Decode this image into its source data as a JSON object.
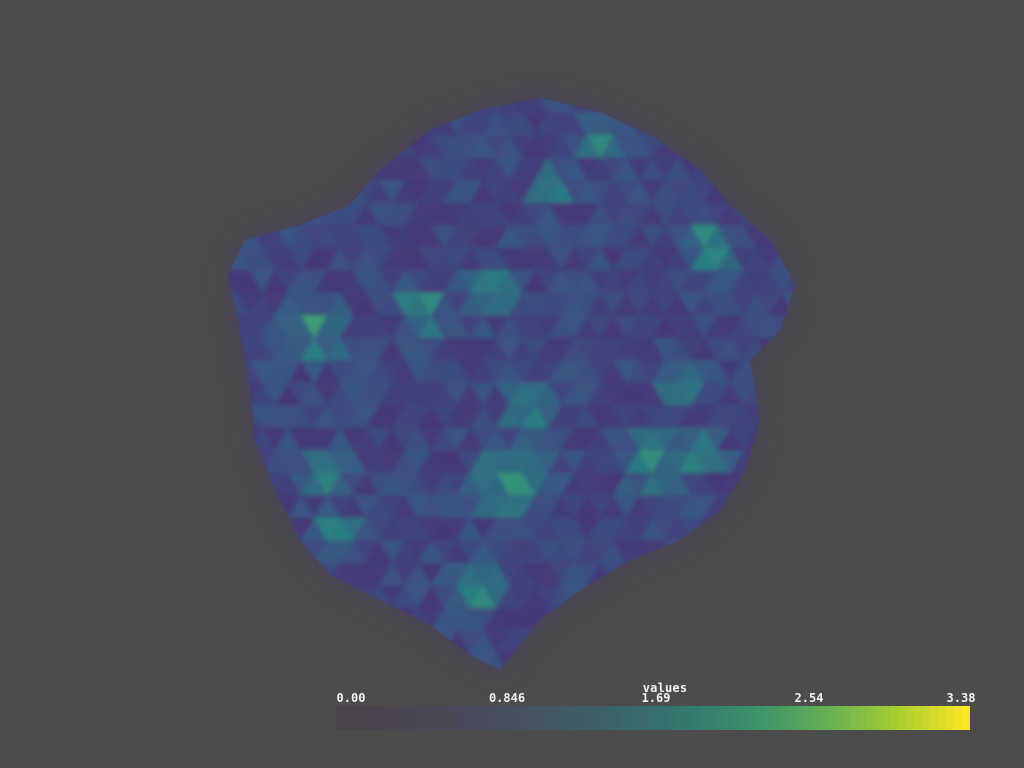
{
  "background_color": "#4c4c4c",
  "scalar_bar": {
    "title": "values",
    "min": 0.0,
    "max": 3.38,
    "tick_labels": [
      "0.00",
      "0.846",
      "1.69",
      "2.54",
      "3.38"
    ],
    "colormap": "viridis",
    "opacity_ramp": "increasing"
  }
}
